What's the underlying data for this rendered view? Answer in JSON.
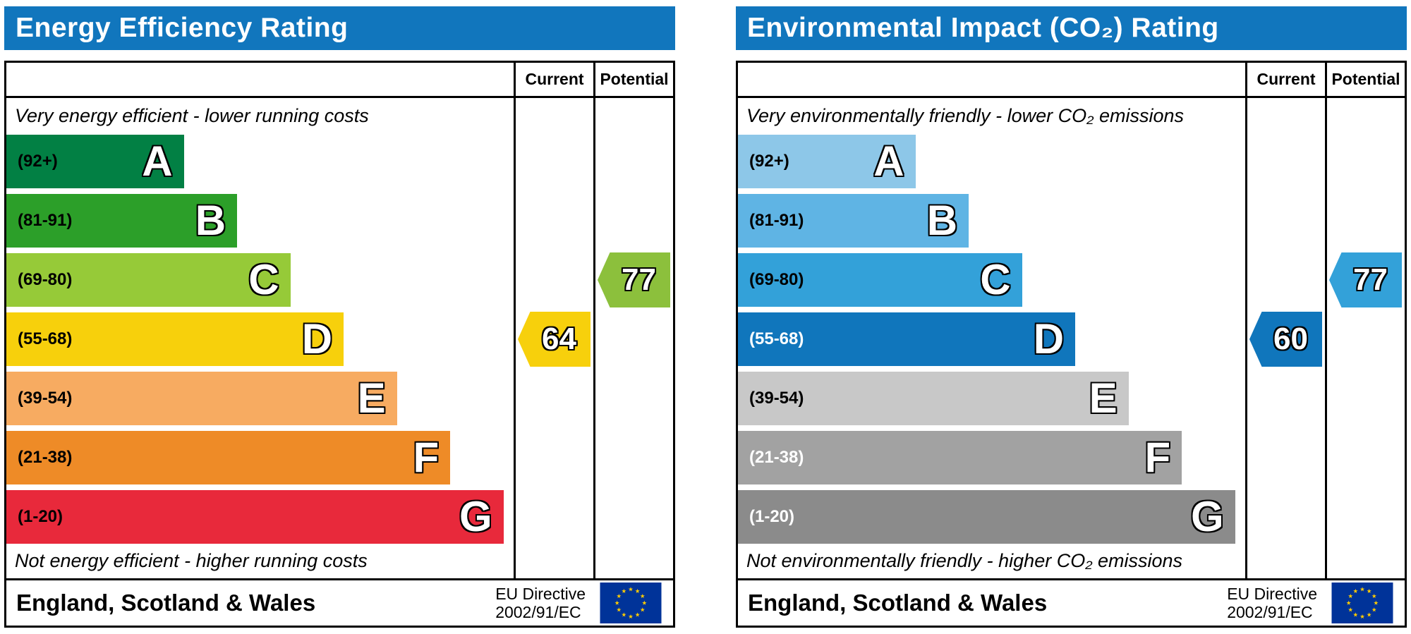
{
  "chart_data": [
    {
      "type": "bar",
      "title": "Energy Efficiency Rating",
      "column_headers": [
        "Current",
        "Potential"
      ],
      "top_note": "Very energy efficient - lower running costs",
      "bottom_note": "Not energy efficient - higher running costs",
      "bands": [
        {
          "letter": "A",
          "range_label": "(92+)",
          "color": "#028044",
          "label_color": "#000000",
          "width_pct": 35
        },
        {
          "letter": "B",
          "range_label": "(81-91)",
          "color": "#2c9f29",
          "label_color": "#000000",
          "width_pct": 45.5
        },
        {
          "letter": "C",
          "range_label": "(69-80)",
          "color": "#96ca38",
          "label_color": "#000000",
          "width_pct": 56
        },
        {
          "letter": "D",
          "range_label": "(55-68)",
          "color": "#f7d00c",
          "label_color": "#000000",
          "width_pct": 66.5
        },
        {
          "letter": "E",
          "range_label": "(39-54)",
          "color": "#f7ab61",
          "label_color": "#000000",
          "width_pct": 77
        },
        {
          "letter": "F",
          "range_label": "(21-38)",
          "color": "#ee8b27",
          "label_color": "#000000",
          "width_pct": 87.5
        },
        {
          "letter": "G",
          "range_label": "(1-20)",
          "color": "#e8293b",
          "label_color": "#000000",
          "width_pct": 98
        }
      ],
      "current": {
        "value": 64,
        "band": "D",
        "color": "#f7d00c"
      },
      "potential": {
        "value": 77,
        "band": "C",
        "color": "#8cc03c"
      },
      "footer": {
        "region": "England, Scotland & Wales",
        "directive_line1": "EU Directive",
        "directive_line2": "2002/91/EC"
      }
    },
    {
      "type": "bar",
      "title": "Environmental Impact (CO₂) Rating",
      "column_headers": [
        "Current",
        "Potential"
      ],
      "top_note": "Very environmentally friendly - lower CO₂ emissions",
      "bottom_note": "Not environmentally friendly - higher CO₂ emissions",
      "bands": [
        {
          "letter": "A",
          "range_label": "(92+)",
          "color": "#8dc7e8",
          "label_color": "#000000",
          "width_pct": 35
        },
        {
          "letter": "B",
          "range_label": "(81-91)",
          "color": "#5fb4e4",
          "label_color": "#000000",
          "width_pct": 45.5
        },
        {
          "letter": "C",
          "range_label": "(69-80)",
          "color": "#33a1d9",
          "label_color": "#000000",
          "width_pct": 56
        },
        {
          "letter": "D",
          "range_label": "(55-68)",
          "color": "#1076bc",
          "label_color": "#ffffff",
          "width_pct": 66.5
        },
        {
          "letter": "E",
          "range_label": "(39-54)",
          "color": "#c8c8c8",
          "label_color": "#000000",
          "width_pct": 77
        },
        {
          "letter": "F",
          "range_label": "(21-38)",
          "color": "#a2a2a2",
          "label_color": "#ffffff",
          "width_pct": 87.5
        },
        {
          "letter": "G",
          "range_label": "(1-20)",
          "color": "#8b8b8b",
          "label_color": "#ffffff",
          "width_pct": 98
        }
      ],
      "current": {
        "value": 60,
        "band": "D",
        "color": "#1076bc"
      },
      "potential": {
        "value": 77,
        "band": "C",
        "color": "#33a1d9"
      },
      "footer": {
        "region": "England, Scotland & Wales",
        "directive_line1": "EU Directive",
        "directive_line2": "2002/91/EC"
      }
    }
  ],
  "eu_flag": {
    "background": "#003399",
    "star_color": "#ffcc00"
  },
  "theme": {
    "title_bar_color": "#1176bd",
    "title_text_color": "#ffffff",
    "border_color": "#000000"
  }
}
